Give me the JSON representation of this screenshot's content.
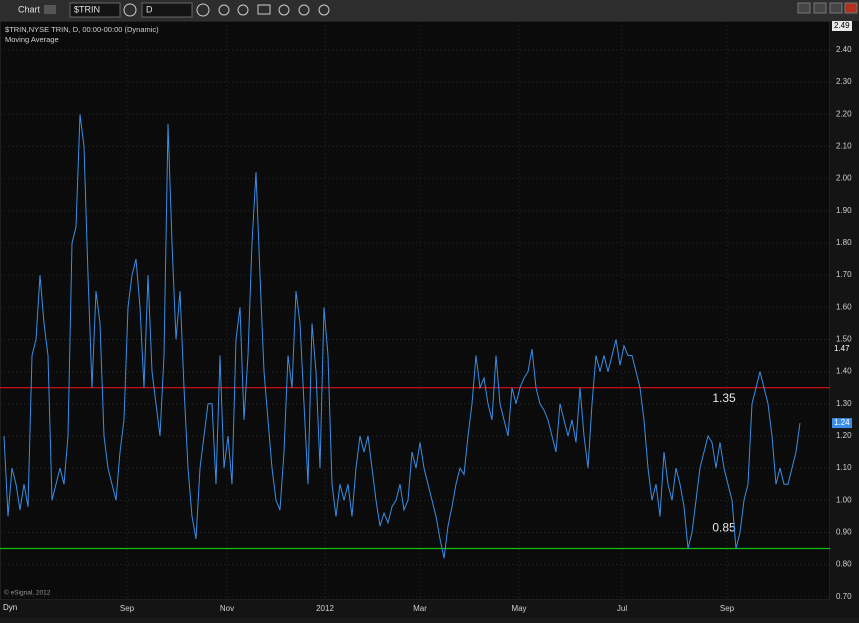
{
  "toolbar": {
    "window_title": "Chart",
    "symbol": "$TRIN",
    "interval": "D"
  },
  "footer": {
    "copyright": "© eSignal, 2012",
    "mode": "Dyn"
  },
  "chart_data": {
    "type": "line",
    "study_label": "Moving Average",
    "series": [
      {
        "name": "$TRIN,NYSE TRIN, D, 00:00-00:00 (Dynamic)",
        "color": "#3a8ee6",
        "values": [
          1.2,
          0.95,
          1.1,
          1.05,
          0.97,
          1.05,
          0.98,
          1.45,
          1.5,
          1.7,
          1.55,
          1.45,
          1.0,
          1.05,
          1.1,
          1.05,
          1.2,
          1.8,
          1.85,
          2.2,
          2.1,
          1.7,
          1.35,
          1.65,
          1.55,
          1.2,
          1.1,
          1.05,
          1.0,
          1.15,
          1.25,
          1.6,
          1.7,
          1.75,
          1.6,
          1.35,
          1.7,
          1.4,
          1.3,
          1.2,
          1.45,
          2.17,
          1.8,
          1.5,
          1.65,
          1.35,
          1.1,
          0.95,
          0.88,
          1.1,
          1.2,
          1.3,
          1.3,
          1.05,
          1.45,
          1.1,
          1.2,
          1.05,
          1.5,
          1.6,
          1.25,
          1.45,
          1.8,
          2.02,
          1.7,
          1.4,
          1.25,
          1.1,
          1.0,
          0.97,
          1.15,
          1.45,
          1.35,
          1.65,
          1.55,
          1.3,
          1.05,
          1.55,
          1.4,
          1.1,
          1.6,
          1.45,
          1.05,
          0.95,
          1.05,
          1.0,
          1.05,
          0.95,
          1.1,
          1.2,
          1.15,
          1.2,
          1.1,
          1.0,
          0.92,
          0.96,
          0.93,
          0.98,
          1.0,
          1.05,
          0.97,
          1.0,
          1.15,
          1.1,
          1.18,
          1.1,
          1.05,
          1.0,
          0.95,
          0.88,
          0.82,
          0.92,
          0.98,
          1.05,
          1.1,
          1.08,
          1.2,
          1.3,
          1.45,
          1.35,
          1.38,
          1.3,
          1.25,
          1.45,
          1.3,
          1.25,
          1.2,
          1.35,
          1.3,
          1.35,
          1.38,
          1.4,
          1.47,
          1.35,
          1.3,
          1.28,
          1.25,
          1.2,
          1.15,
          1.3,
          1.25,
          1.2,
          1.25,
          1.18,
          1.35,
          1.2,
          1.1,
          1.3,
          1.45,
          1.4,
          1.45,
          1.4,
          1.45,
          1.5,
          1.42,
          1.48,
          1.45,
          1.45,
          1.4,
          1.35,
          1.25,
          1.1,
          1.0,
          1.05,
          0.95,
          1.15,
          1.05,
          1.0,
          1.1,
          1.05,
          0.98,
          0.85,
          0.9,
          1.0,
          1.1,
          1.15,
          1.2,
          1.18,
          1.1,
          1.18,
          1.1,
          1.05,
          1.0,
          0.85,
          0.9,
          1.0,
          1.05,
          1.3,
          1.35,
          1.4,
          1.35,
          1.3,
          1.2,
          1.05,
          1.1,
          1.05,
          1.05,
          1.1,
          1.15,
          1.24
        ]
      }
    ],
    "xlim": [
      -1,
      206.5
    ],
    "xticks": [
      {
        "value": 30.75,
        "label": "Sep"
      },
      {
        "value": 55.75,
        "label": "Nov"
      },
      {
        "value": 80.25,
        "label": "2012"
      },
      {
        "value": 104,
        "label": "Mar"
      },
      {
        "value": 128.75,
        "label": "May"
      },
      {
        "value": 154.5,
        "label": "Jul"
      },
      {
        "value": 180.75,
        "label": "Sep"
      }
    ],
    "ylim": [
      0.69,
      2.49
    ],
    "yticks": [
      {
        "value": 0.7,
        "label": "0.70"
      },
      {
        "value": 0.8,
        "label": "0.80"
      },
      {
        "value": 0.9,
        "label": "0.90"
      },
      {
        "value": 1.0,
        "label": "1.00"
      },
      {
        "value": 1.1,
        "label": "1.10"
      },
      {
        "value": 1.2,
        "label": "1.20"
      },
      {
        "value": 1.3,
        "label": "1.30"
      },
      {
        "value": 1.4,
        "label": "1.40"
      },
      {
        "value": 1.5,
        "label": "1.50"
      },
      {
        "value": 1.6,
        "label": "1.60"
      },
      {
        "value": 1.7,
        "label": "1.70"
      },
      {
        "value": 1.8,
        "label": "1.80"
      },
      {
        "value": 1.9,
        "label": "1.90"
      },
      {
        "value": 2.0,
        "label": "2.00"
      },
      {
        "value": 2.1,
        "label": "2.10"
      },
      {
        "value": 2.2,
        "label": "2.20"
      },
      {
        "value": 2.3,
        "label": "2.30"
      },
      {
        "value": 2.4,
        "label": "2.40"
      }
    ],
    "axis_markers": [
      2.49,
      1.47,
      1.24
    ],
    "reference_lines": [
      {
        "value": 1.35,
        "color": "#e01010"
      },
      {
        "value": 0.85,
        "color": "#10c010"
      }
    ],
    "grid": true
  }
}
